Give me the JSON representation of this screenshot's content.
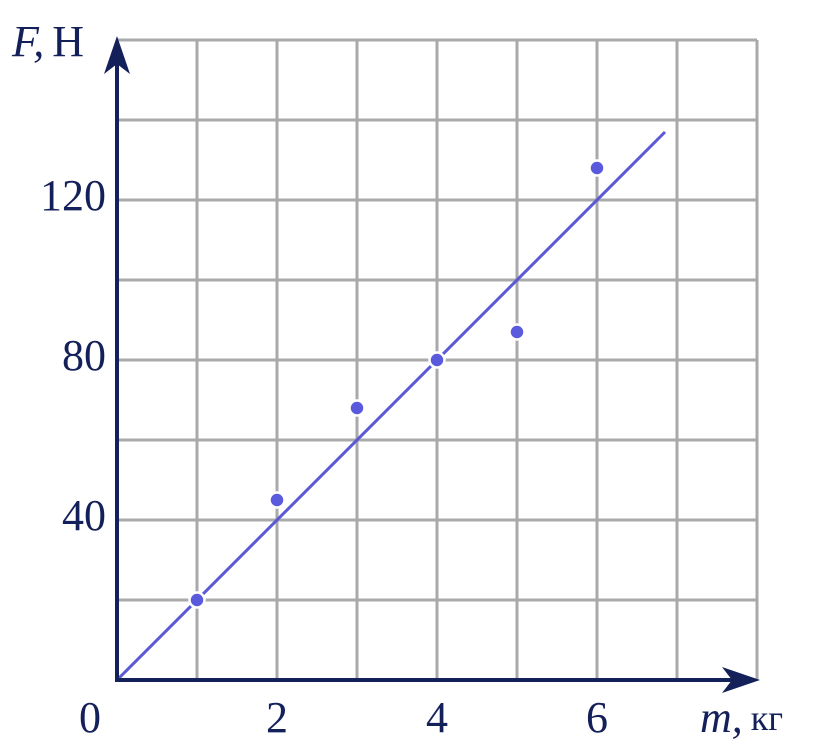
{
  "chart_data": {
    "type": "scatter",
    "ylabel_symbol": "F,",
    "ylabel_unit": "Н",
    "xlabel_symbol": "m,",
    "xlabel_unit": "кг",
    "xlim": [
      0,
      8
    ],
    "ylim": [
      0,
      160
    ],
    "xticks": [
      0,
      2,
      4,
      6
    ],
    "yticks": [
      40,
      80,
      120
    ],
    "xgrid": [
      1,
      2,
      3,
      4,
      5,
      6,
      7,
      8
    ],
    "ygrid": [
      20,
      40,
      60,
      80,
      100,
      120,
      140,
      160
    ],
    "grid": true,
    "series": [
      {
        "kind": "points",
        "color": "#5a5adc",
        "x": [
          1,
          2,
          3,
          4,
          5,
          6
        ],
        "values": [
          20,
          45,
          68,
          80,
          87,
          128
        ]
      },
      {
        "kind": "line",
        "color": "#5a5ad6",
        "x": [
          0,
          6.85
        ],
        "values": [
          0,
          137
        ]
      }
    ]
  }
}
